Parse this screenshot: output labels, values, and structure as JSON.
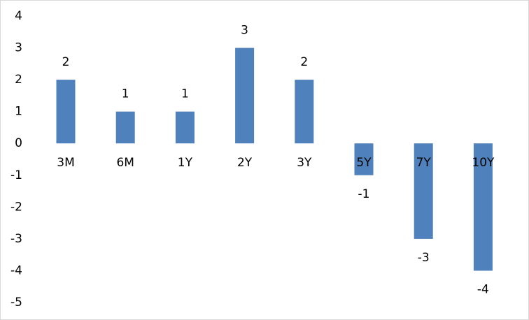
{
  "chart_data": {
    "type": "bar",
    "categories": [
      "3M",
      "6M",
      "1Y",
      "2Y",
      "3Y",
      "5Y",
      "7Y",
      "10Y"
    ],
    "values": [
      2,
      1,
      1,
      3,
      2,
      -1,
      -3,
      -4
    ],
    "color": "#4f81bd",
    "ylim": [
      -5,
      4
    ],
    "yticks": [
      -5,
      -4,
      -3,
      -2,
      -1,
      0,
      1,
      2,
      3,
      4
    ],
    "grid": false
  }
}
